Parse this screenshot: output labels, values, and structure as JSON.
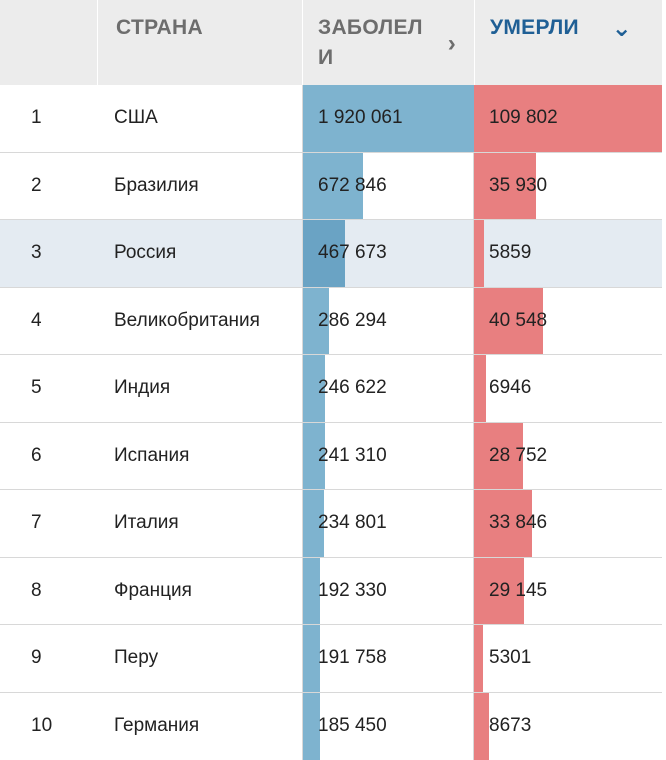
{
  "header": {
    "rank": "",
    "country": "СТРАНА",
    "cases": "ЗАБОЛЕЛИ",
    "deaths": "УМЕРЛИ",
    "cases_icon": "chevron-right-icon",
    "deaths_icon": "chevron-down-icon"
  },
  "colors": {
    "cases_bar": "#7eb3cf",
    "deaths_bar": "#e87f80",
    "highlight_row": "#e4ebf2",
    "sorted_header": "#1f5f95"
  },
  "chart_data": {
    "type": "table",
    "columns": [
      "",
      "СТРАНА",
      "ЗАБОЛЕЛИ",
      "УМЕРЛИ"
    ],
    "sorted_by": "УМЕРЛИ",
    "highlighted_row": 3,
    "rows": [
      {
        "rank": "1",
        "country": "США",
        "cases_label": "1 920 061",
        "cases": 1920061,
        "deaths_label": "109 802",
        "deaths": 109802
      },
      {
        "rank": "2",
        "country": "Бразилия",
        "cases_label": "672 846",
        "cases": 672846,
        "deaths_label": "35 930",
        "deaths": 35930
      },
      {
        "rank": "3",
        "country": "Россия",
        "cases_label": "467 673",
        "cases": 467673,
        "deaths_label": "5859",
        "deaths": 5859
      },
      {
        "rank": "4",
        "country": "Великобритания",
        "cases_label": "286 294",
        "cases": 286294,
        "deaths_label": "40 548",
        "deaths": 40548
      },
      {
        "rank": "5",
        "country": "Индия",
        "cases_label": "246 622",
        "cases": 246622,
        "deaths_label": "6946",
        "deaths": 6946
      },
      {
        "rank": "6",
        "country": "Испания",
        "cases_label": "241 310",
        "cases": 241310,
        "deaths_label": "28 752",
        "deaths": 28752
      },
      {
        "rank": "7",
        "country": "Италия",
        "cases_label": "234 801",
        "cases": 234801,
        "deaths_label": "33 846",
        "deaths": 33846
      },
      {
        "rank": "8",
        "country": "Франция",
        "cases_label": "192 330",
        "cases": 192330,
        "deaths_label": "29 145",
        "deaths": 29145
      },
      {
        "rank": "9",
        "country": "Перу",
        "cases_label": "191 758",
        "cases": 191758,
        "deaths_label": "5301",
        "deaths": 5301
      },
      {
        "rank": "10",
        "country": "Германия",
        "cases_label": "185 450",
        "cases": 185450,
        "deaths_label": "8673",
        "deaths": 8673
      }
    ]
  }
}
